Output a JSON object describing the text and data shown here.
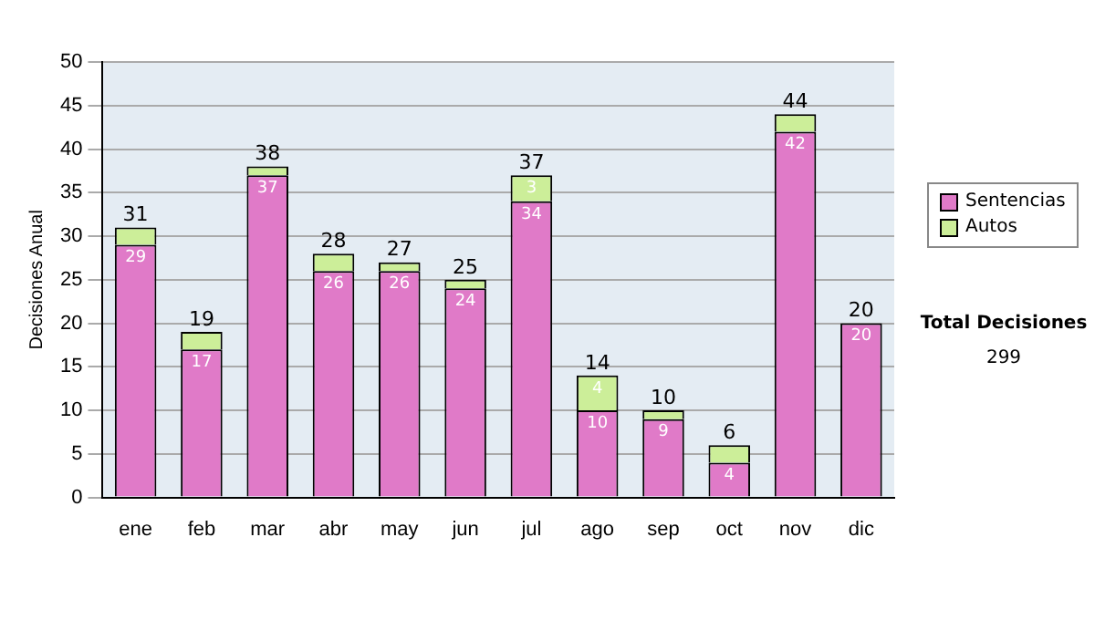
{
  "chart_data": {
    "type": "bar",
    "stacked": true,
    "ylabel": "Decisiones Anual",
    "categories": [
      "ene",
      "feb",
      "mar",
      "abr",
      "may",
      "jun",
      "jul",
      "ago",
      "sep",
      "oct",
      "nov",
      "dic"
    ],
    "series": [
      {
        "name": "Sentencias",
        "color": "#e07ac8",
        "values": [
          29,
          17,
          37,
          26,
          26,
          24,
          34,
          10,
          9,
          4,
          42,
          20
        ],
        "value_labels": [
          "29",
          "17",
          "37",
          "26",
          "26",
          "24",
          "34",
          "10",
          "9",
          "4",
          "42",
          "20"
        ]
      },
      {
        "name": "Autos",
        "color": "#ccee99",
        "values": [
          2,
          2,
          1,
          2,
          1,
          1,
          3,
          4,
          1,
          2,
          2,
          0
        ],
        "value_labels": [
          null,
          null,
          null,
          null,
          null,
          null,
          "3",
          "4",
          null,
          null,
          null,
          null
        ]
      }
    ],
    "totals": [
      "31",
      "19",
      "38",
      "28",
      "27",
      "25",
      "37",
      "14",
      "10",
      "6",
      "44",
      "20"
    ],
    "ylim": [
      0,
      50
    ],
    "yticks": [
      0,
      5,
      10,
      15,
      20,
      25,
      30,
      35,
      40,
      45,
      50
    ],
    "grid": "y",
    "legend": "right",
    "annotations": [
      "Total Decisiones",
      "299"
    ]
  }
}
